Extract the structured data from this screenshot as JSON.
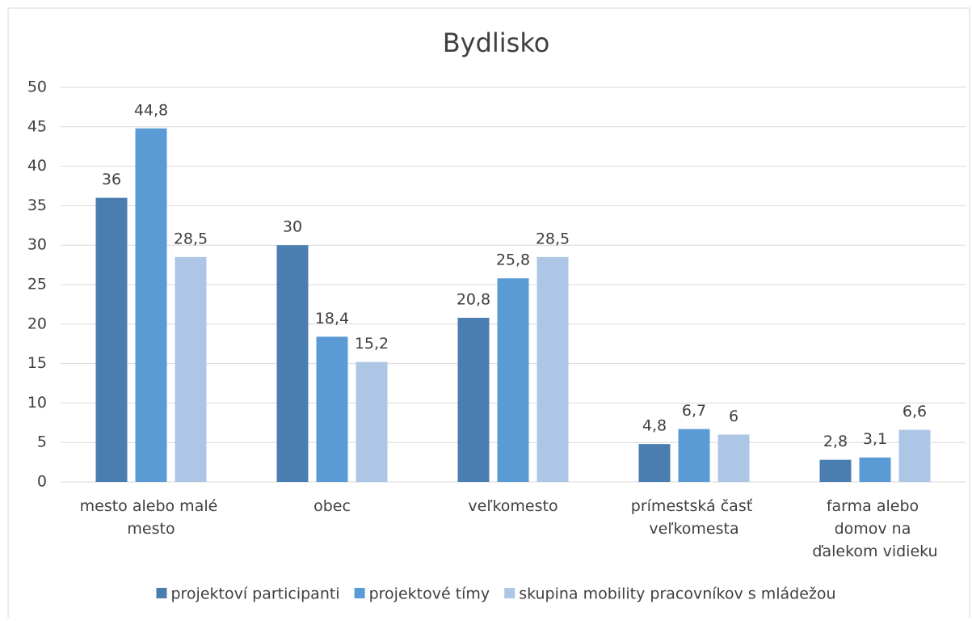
{
  "chart_data": {
    "type": "bar",
    "title": "Bydlisko",
    "categories": [
      "mesto alebo malé\nmesto",
      "obec",
      "veľkomesto",
      "prímestská časť\nveľkomesta",
      "farma alebo\ndomov na\nďalekom vidieku"
    ],
    "series": [
      {
        "name": "projektoví participanti",
        "color": "#4a7eb0",
        "values": [
          36,
          30,
          20.8,
          4.8,
          2.8
        ],
        "value_labels": [
          "36",
          "30",
          "20,8",
          "4,8",
          "2,8"
        ]
      },
      {
        "name": "projektové tímy",
        "color": "#5b9bd5",
        "values": [
          44.8,
          18.4,
          25.8,
          6.7,
          3.1
        ],
        "value_labels": [
          "44,8",
          "18,4",
          "25,8",
          "6,7",
          "3,1"
        ]
      },
      {
        "name": "skupina mobility pracovníkov s mládežou",
        "color": "#adc6e5",
        "values": [
          28.5,
          15.2,
          28.5,
          6,
          6.6
        ],
        "value_labels": [
          "28,5",
          "15,2",
          "28,5",
          "6",
          "6,6"
        ]
      }
    ],
    "ylim": [
      0,
      50
    ],
    "yticks": [
      0,
      5,
      10,
      15,
      20,
      25,
      30,
      35,
      40,
      45,
      50
    ],
    "grid": true,
    "legend": "bottom"
  }
}
